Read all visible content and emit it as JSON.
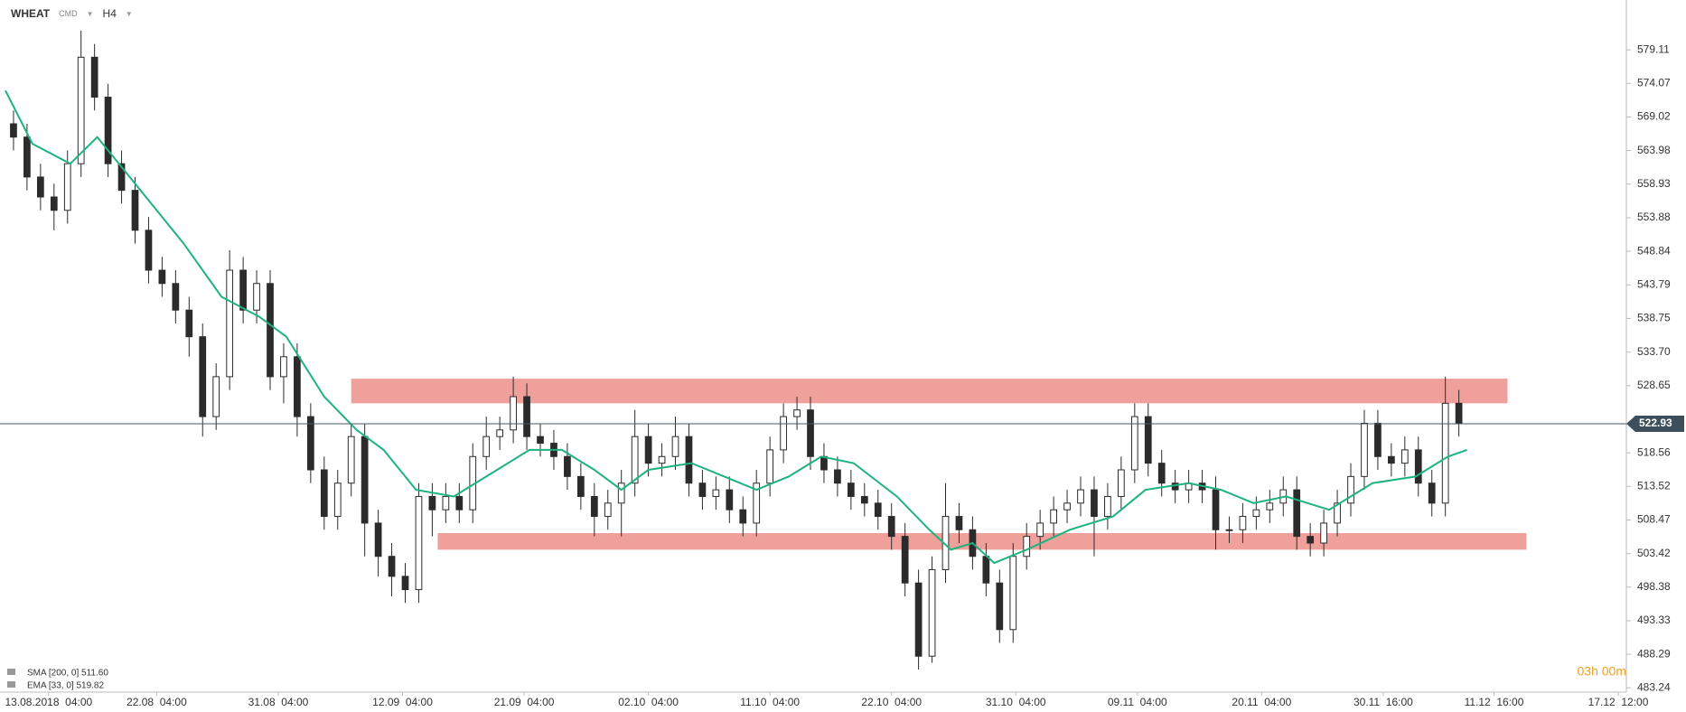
{
  "header": {
    "symbol": "WHEAT",
    "market": "CMD",
    "timeframe": "H4"
  },
  "chart_data": {
    "type": "candlestick",
    "x": [
      1,
      2,
      3,
      4,
      5,
      6,
      7,
      8,
      9,
      10,
      11,
      12,
      13,
      14,
      15,
      16,
      17,
      18,
      19,
      20,
      21,
      22,
      23,
      24,
      25,
      26,
      27,
      28,
      29,
      30,
      31,
      32,
      33,
      34,
      35,
      36,
      37,
      38,
      39,
      40,
      41,
      42,
      43,
      44,
      45,
      46,
      47,
      48,
      49,
      50,
      51,
      52,
      53,
      54,
      55,
      56,
      57,
      58,
      59,
      60,
      61,
      62,
      63,
      64,
      65,
      66,
      67,
      68,
      69,
      70,
      71,
      72,
      73,
      74,
      75,
      76,
      77,
      78,
      79,
      80,
      81,
      82,
      83,
      84,
      85,
      86,
      87,
      88,
      89,
      90,
      91,
      92,
      93,
      94,
      95,
      96,
      97,
      98,
      99,
      100,
      101,
      102,
      103,
      104,
      105,
      106,
      107,
      108
    ],
    "open": [
      568,
      566,
      560,
      557,
      555,
      562,
      578,
      572,
      562,
      558,
      552,
      546,
      544,
      540,
      536,
      524,
      530,
      546,
      540,
      544,
      530,
      533,
      524,
      516,
      509,
      514,
      521,
      508,
      503,
      500,
      498,
      512,
      510,
      512,
      510,
      518,
      521,
      522,
      527,
      521,
      520,
      518,
      515,
      512,
      509,
      511,
      514,
      521,
      517,
      518,
      521,
      514,
      512,
      513,
      510,
      508,
      514,
      519,
      524,
      525,
      518,
      516,
      514,
      512,
      511,
      509,
      506,
      499,
      488,
      501,
      509,
      507,
      503,
      499,
      492,
      503,
      506,
      508,
      510,
      511,
      513,
      509,
      512,
      516,
      524,
      517,
      514,
      513,
      514,
      513,
      507,
      507,
      509,
      510,
      511,
      513,
      506,
      505,
      508,
      511,
      515,
      523,
      518,
      517,
      519,
      514,
      511,
      526
    ],
    "high": [
      570,
      568,
      562,
      559,
      564,
      582,
      580,
      574,
      564,
      560,
      554,
      548,
      546,
      542,
      538,
      532,
      549,
      548,
      546,
      546,
      535,
      535,
      526,
      518,
      516,
      523,
      523,
      510,
      505,
      502,
      514,
      514,
      514,
      514,
      520,
      524,
      524,
      530,
      529,
      523,
      522,
      520,
      517,
      514,
      513,
      516,
      525,
      523,
      520,
      524,
      523,
      516,
      515,
      515,
      512,
      516,
      521,
      526,
      527,
      527,
      520,
      518,
      516,
      514,
      513,
      511,
      508,
      501,
      503,
      514,
      511,
      509,
      505,
      501,
      505,
      508,
      510,
      512,
      513,
      515,
      515,
      514,
      518,
      526,
      526,
      519,
      516,
      516,
      516,
      515,
      509,
      511,
      512,
      513,
      515,
      515,
      508,
      510,
      513,
      517,
      525,
      525,
      520,
      521,
      521,
      516,
      530,
      528
    ],
    "low": [
      564,
      558,
      555,
      552,
      553,
      560,
      570,
      560,
      556,
      550,
      544,
      542,
      538,
      533,
      521,
      522,
      528,
      538,
      538,
      528,
      526,
      521,
      514,
      507,
      507,
      512,
      503,
      500,
      497,
      496,
      496,
      506,
      508,
      508,
      508,
      516,
      519,
      520,
      519,
      518,
      516,
      513,
      510,
      506,
      507,
      506,
      512,
      515,
      515,
      516,
      512,
      510,
      510,
      508,
      506,
      506,
      512,
      517,
      522,
      516,
      514,
      512,
      510,
      509,
      507,
      504,
      497,
      486,
      487,
      499,
      505,
      501,
      497,
      490,
      490,
      501,
      504,
      506,
      508,
      509,
      503,
      507,
      510,
      514,
      515,
      512,
      511,
      511,
      511,
      504,
      505,
      505,
      507,
      508,
      509,
      504,
      503,
      503,
      506,
      509,
      513,
      516,
      515,
      515,
      512,
      509,
      509,
      521
    ],
    "close": [
      566,
      560,
      557,
      555,
      562,
      578,
      572,
      562,
      558,
      552,
      546,
      544,
      540,
      536,
      524,
      530,
      546,
      540,
      544,
      530,
      533,
      524,
      516,
      509,
      514,
      521,
      508,
      503,
      500,
      498,
      512,
      510,
      512,
      510,
      518,
      521,
      522,
      527,
      521,
      520,
      518,
      515,
      512,
      509,
      511,
      514,
      521,
      517,
      518,
      521,
      514,
      512,
      513,
      510,
      508,
      514,
      519,
      524,
      525,
      518,
      516,
      514,
      512,
      511,
      509,
      506,
      499,
      488,
      501,
      509,
      507,
      503,
      499,
      492,
      503,
      506,
      508,
      510,
      511,
      513,
      509,
      512,
      516,
      524,
      517,
      514,
      513,
      514,
      513,
      507,
      507,
      509,
      510,
      511,
      513,
      506,
      505,
      508,
      511,
      515,
      523,
      518,
      517,
      519,
      514,
      511,
      526,
      523
    ],
    "up_color": "#ffffff",
    "down_color": "#2b2b2b",
    "wick_color": "#2b2b2b",
    "ema": {
      "color": "#1db37e",
      "x": [
        0.4,
        2.4,
        5.2,
        7.2,
        9.6,
        13.6,
        16.4,
        19.2,
        21.2,
        24,
        26.4,
        28.4,
        30.8,
        33.6,
        36.8,
        39.2,
        41.6,
        44,
        46,
        48,
        51.2,
        53.6,
        56,
        58.4,
        60.8,
        63.2,
        66.4,
        68.8,
        70.4,
        72,
        73.6,
        76,
        79.2,
        82.4,
        84.8,
        88,
        90.4,
        92.8,
        95.2,
        98.4,
        101.6,
        104.8,
        107.2,
        108.6
      ],
      "values": [
        573,
        565,
        562,
        566,
        560,
        550,
        542,
        539,
        536,
        527,
        522,
        519,
        513,
        512,
        516,
        519,
        519,
        516,
        513,
        516,
        517,
        515,
        513,
        515,
        518,
        517,
        512,
        507,
        504,
        505,
        502,
        504,
        507,
        509,
        513,
        514,
        513,
        511,
        512,
        510,
        514,
        515,
        518,
        519
      ]
    },
    "zones": [
      {
        "x": [
          26,
          111.6
        ],
        "y": [
          526,
          529.7
        ],
        "color": "#f0a09b"
      },
      {
        "x": [
          32.4,
          113
        ],
        "y": [
          504,
          506.5
        ],
        "color": "#f0a09b"
      }
    ],
    "current_price": 522.93,
    "ylim": [
      482.6,
      586.6
    ],
    "yticks": [
      579.11,
      574.07,
      569.02,
      563.98,
      558.93,
      553.88,
      548.84,
      543.79,
      538.75,
      {
        "value": 533.7,
        "label": "533.70"
      },
      528.65,
      518.56,
      513.52,
      508.47,
      503.42,
      498.38,
      493.33,
      488.29,
      483.24
    ],
    "xlim": [
      0,
      120.4
    ],
    "xticks": [
      {
        "value": 3.6,
        "label": "13.08.2018  04:00"
      },
      {
        "value": 11.6,
        "label": "22.08  04:00"
      },
      {
        "value": 20.6,
        "label": "31.08  04:00"
      },
      {
        "value": 29.8,
        "label": "12.09  04:00"
      },
      {
        "value": 38.8,
        "label": "21.09  04:00"
      },
      {
        "value": 48,
        "label": "02.10  04:00"
      },
      {
        "value": 57,
        "label": "11.10  04:00"
      },
      {
        "value": 66,
        "label": "22.10  04:00"
      },
      {
        "value": 75.2,
        "label": "31.10  04:00"
      },
      {
        "value": 84.2,
        "label": "09.11  04:00"
      },
      {
        "value": 93.4,
        "label": "20.11  04:00"
      },
      {
        "value": 102.4,
        "label": "30.11  16:00"
      },
      {
        "value": 110.6,
        "label": "11.12  16:00"
      },
      {
        "value": 119.8,
        "label": "17.12  12:00"
      }
    ],
    "indicators": [
      "SMA [200, 0] 511.60",
      "EMA [33, 0] 519.82"
    ],
    "timer": "03h 00m"
  }
}
